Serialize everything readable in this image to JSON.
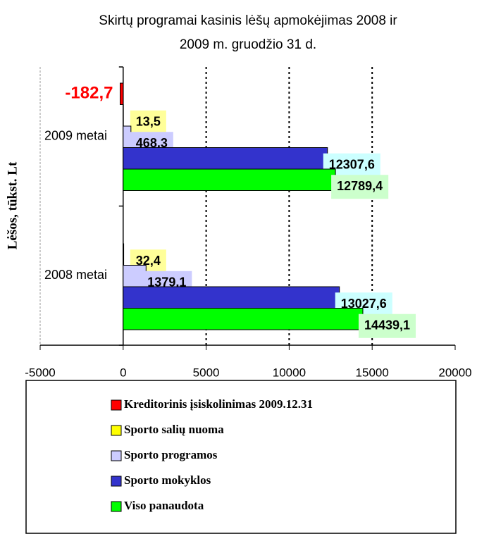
{
  "chart_data": {
    "type": "barh",
    "title": [
      "Skirtų programai kasinis lėšų apmokėjimas 2008 ir",
      "2009 m. gruodžio 31 d."
    ],
    "y_label": "Lėšos, tūkst. Lt",
    "categories": [
      "2008 metai",
      "2009 metai"
    ],
    "series": [
      {
        "name": "Kreditorinis įsiskolinimas 2009.12.31",
        "color": "#ff0000",
        "label_background": "#ffffff",
        "label_color": "#ff0000",
        "values": [
          null,
          -182.7
        ],
        "value_labels": [
          null,
          "-182,7"
        ]
      },
      {
        "name": "Sporto salių nuoma",
        "color": "#ffff00",
        "label_background": "#ffff99",
        "label_color": "#000000",
        "values": [
          32.4,
          13.5
        ],
        "value_labels": [
          "32,4",
          "13,5"
        ]
      },
      {
        "name": "Sporto programos",
        "color": "#ccccff",
        "label_background": "#ccccff",
        "label_color": "#000000",
        "values": [
          1379.1,
          468.3
        ],
        "value_labels": [
          "1379,1",
          "468,3"
        ]
      },
      {
        "name": "Sporto mokyklos",
        "color": "#3333cc",
        "label_background": "#ccffff",
        "label_color": "#000000",
        "values": [
          13027.6,
          12307.6
        ],
        "value_labels": [
          "13027,6",
          "12307,6"
        ]
      },
      {
        "name": "Viso panaudota",
        "color": "#00ff00",
        "label_background": "#ccffcc",
        "label_color": "#000000",
        "values": [
          14439.1,
          12789.4
        ],
        "value_labels": [
          "14439,1",
          "12789,4"
        ]
      }
    ],
    "xlim": [
      -5000,
      20000
    ],
    "xticks": [
      -5000,
      0,
      5000,
      10000,
      15000,
      20000
    ],
    "grid": true,
    "legend": "bottom"
  }
}
